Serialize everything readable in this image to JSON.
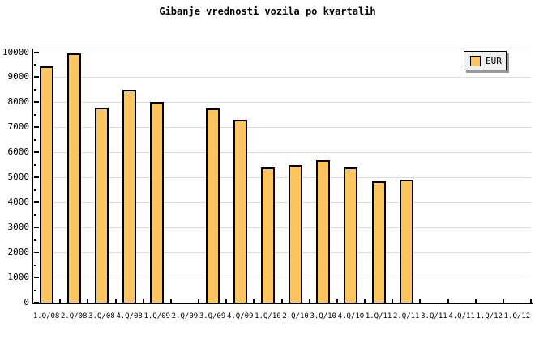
{
  "title": "Gibanje vrednosti vozila po kvartalih",
  "legend": {
    "label": "EUR"
  },
  "chart_data": {
    "type": "bar",
    "title": "Gibanje vrednosti vozila po kvartalih",
    "categories": [
      "1.Q/08",
      "2.Q/08",
      "3.Q/08",
      "4.Q/08",
      "1.Q/09",
      "2.Q/09",
      "3.Q/09",
      "4.Q/09",
      "1.Q/10",
      "2.Q/10",
      "3.Q/10",
      "4.Q/10",
      "1.Q/11",
      "2.Q/11",
      "3.Q/11",
      "4.Q/11",
      "1.Q/12",
      "1.Q/12"
    ],
    "series": [
      {
        "name": "EUR",
        "values": [
          9450,
          9950,
          7800,
          8500,
          8000,
          null,
          7750,
          7300,
          5400,
          5500,
          5700,
          5400,
          4850,
          4900,
          null,
          null,
          null,
          null
        ]
      }
    ],
    "xlabel": "",
    "ylabel": "",
    "ylim": [
      0,
      10000
    ],
    "y_tick_step": 1000,
    "y_minor_tick_step": 500,
    "grid": true,
    "legend_position": "top-right",
    "colors": {
      "bar_fill": "#FDC55F",
      "bar_border": "#000000",
      "gridline": "#DDDDDD",
      "axis": "#000000",
      "text": "#000000",
      "legend_bg": "#EFEFEF",
      "legend_shadow": "#999999",
      "background": "#FFFFFF"
    }
  }
}
